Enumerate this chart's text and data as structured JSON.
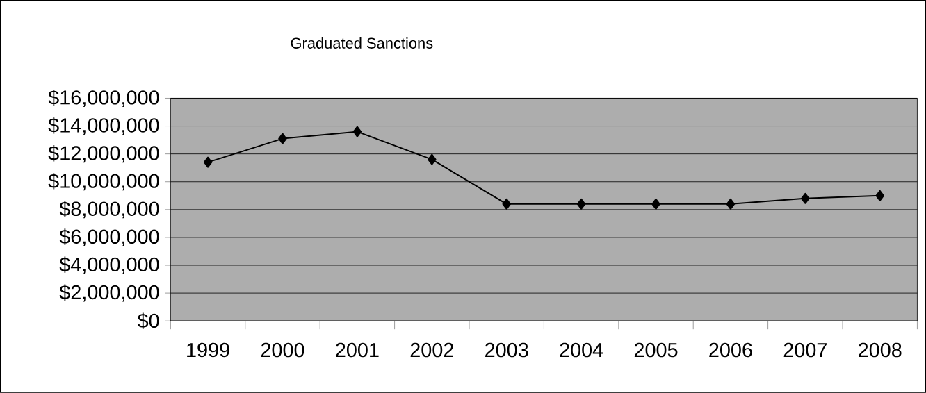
{
  "chart_data": {
    "type": "line",
    "title": "Graduated Sanctions",
    "categories": [
      "1999",
      "2000",
      "2001",
      "2002",
      "2003",
      "2004",
      "2005",
      "2006",
      "2007",
      "2008"
    ],
    "values": [
      11400000,
      13100000,
      13600000,
      11600000,
      8400000,
      8400000,
      8400000,
      8400000,
      8800000,
      9000000
    ],
    "color": "#000000",
    "marker": "diamond",
    "line_style": "solid",
    "grid": "y",
    "ylim": [
      0,
      16000000
    ],
    "yticks": [
      {
        "value": 0,
        "label": "$0"
      },
      {
        "value": 2000000,
        "label": "$2,000,000"
      },
      {
        "value": 4000000,
        "label": "$4,000,000"
      },
      {
        "value": 6000000,
        "label": "$6,000,000"
      },
      {
        "value": 8000000,
        "label": "$8,000,000"
      },
      {
        "value": 10000000,
        "label": "$10,000,000"
      },
      {
        "value": 12000000,
        "label": "$12,000,000"
      },
      {
        "value": 14000000,
        "label": "$14,000,000"
      },
      {
        "value": 16000000,
        "label": "$16,000,000"
      }
    ]
  }
}
